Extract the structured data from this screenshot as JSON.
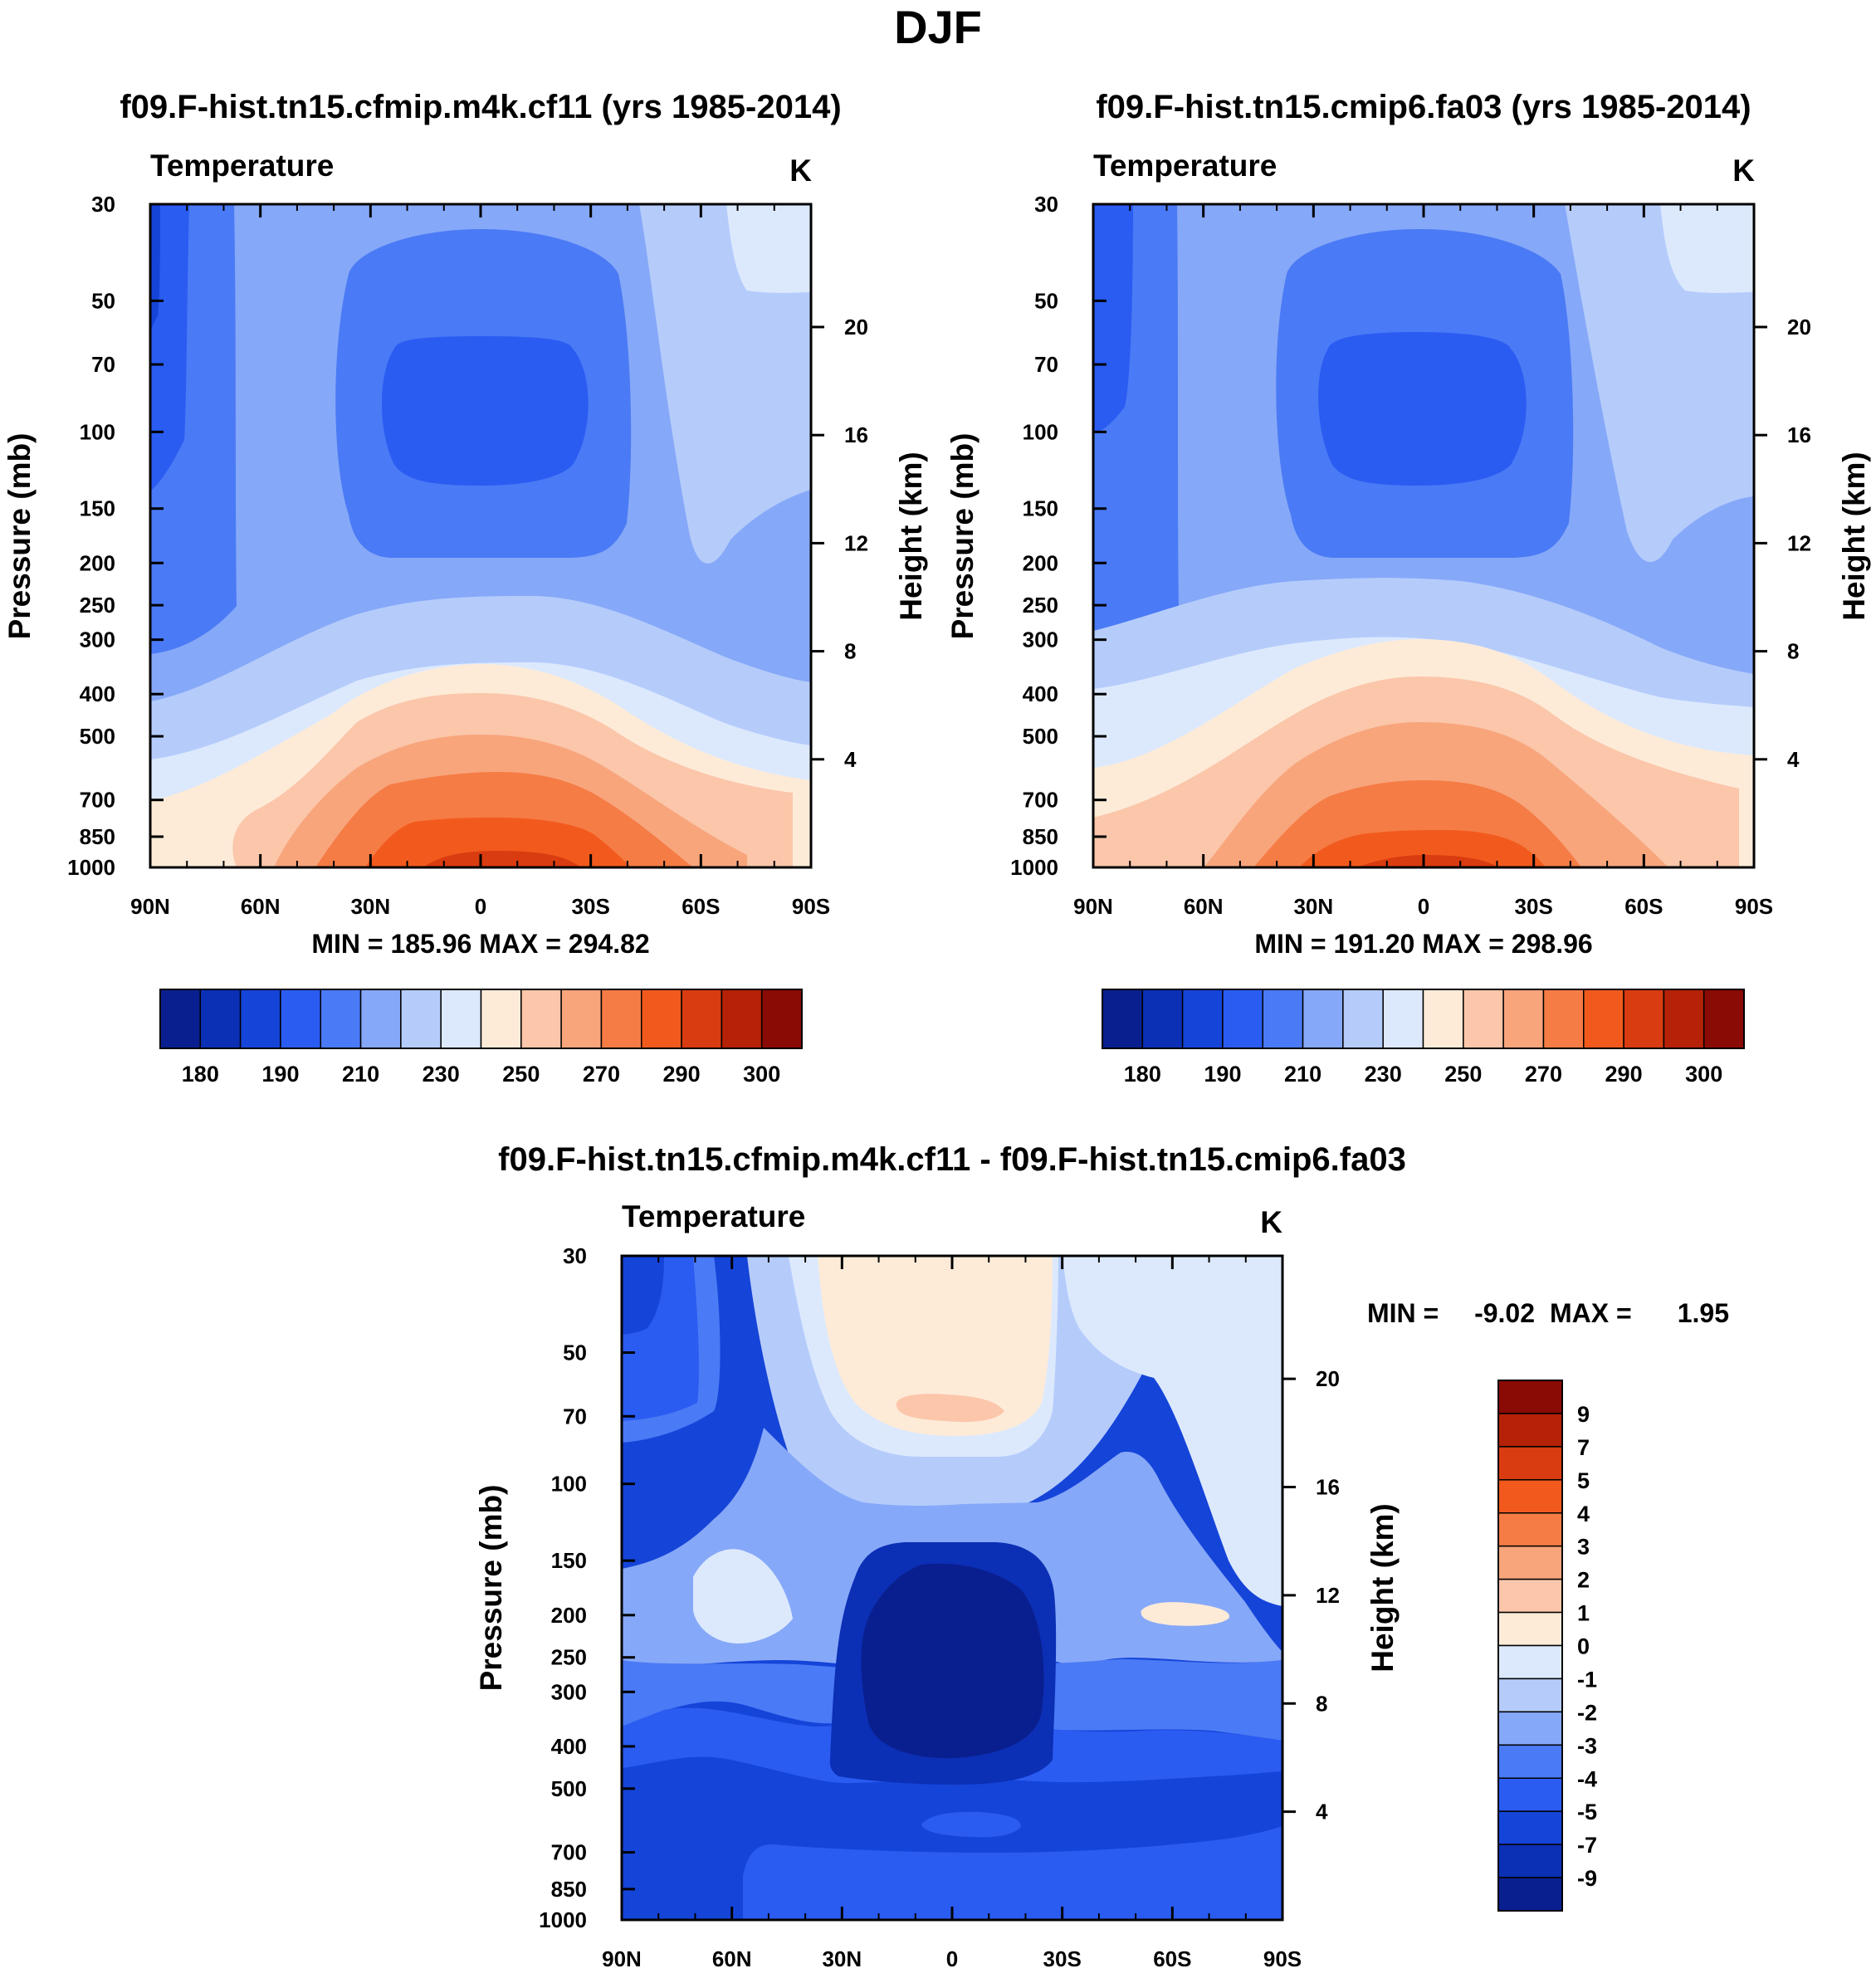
{
  "page": {
    "title": "DJF"
  },
  "colors": {
    "field": [
      "#0a1f8f",
      "#0b2fb5",
      "#1544d9",
      "#2a5cf2",
      "#4a7af5",
      "#86a8f8",
      "#b5ccfb",
      "#dce9fd",
      "#fdebd8",
      "#fbc6aa",
      "#f8a57c",
      "#f57c45",
      "#f25a1d",
      "#d93c10",
      "#b52208",
      "#8a0a05"
    ],
    "diff": [
      "#0a1f8f",
      "#0b2fb5",
      "#1544d9",
      "#2a5cf2",
      "#4a7af5",
      "#86a8f8",
      "#b5ccfb",
      "#dce9fd",
      "#fdebd8",
      "#fbc6aa",
      "#f8a57c",
      "#f57c45",
      "#f25a1d",
      "#d93c10",
      "#b52208",
      "#8a0a05"
    ]
  },
  "chart_data": [
    {
      "type": "heatmap",
      "title": "f09.F-hist.tn15.cfmip.m4k.cf11 (yrs 1985-2014)",
      "variable": "Temperature",
      "units": "K",
      "xlabel": "",
      "ylabel": "Pressure (mb)",
      "y2label": "Height (km)",
      "x_ticks": [
        "90N",
        "60N",
        "30N",
        "0",
        "30S",
        "60S",
        "90S"
      ],
      "y_ticks": [
        30,
        50,
        70,
        100,
        150,
        200,
        250,
        300,
        400,
        500,
        700,
        850,
        1000
      ],
      "y2_ticks": [
        4,
        8,
        12,
        16,
        20
      ],
      "stats": "MIN = 185.96  MAX = 294.82",
      "min": 185.96,
      "max": 294.82,
      "colorbar_labels": [
        "180",
        "190",
        "210",
        "230",
        "250",
        "270",
        "290",
        "300"
      ],
      "levels": [
        180,
        185,
        190,
        200,
        210,
        220,
        230,
        240,
        250,
        260,
        270,
        280,
        290,
        295,
        300
      ]
    },
    {
      "type": "heatmap",
      "title": "f09.F-hist.tn15.cmip6.fa03 (yrs 1985-2014)",
      "variable": "Temperature",
      "units": "K",
      "xlabel": "",
      "ylabel": "Pressure (mb)",
      "y2label": "Height (km)",
      "x_ticks": [
        "90N",
        "60N",
        "30N",
        "0",
        "30S",
        "60S",
        "90S"
      ],
      "y_ticks": [
        30,
        50,
        70,
        100,
        150,
        200,
        250,
        300,
        400,
        500,
        700,
        850,
        1000
      ],
      "y2_ticks": [
        4,
        8,
        12,
        16,
        20
      ],
      "stats": "MIN = 191.20  MAX = 298.96",
      "min": 191.2,
      "max": 298.96,
      "colorbar_labels": [
        "180",
        "190",
        "210",
        "230",
        "250",
        "270",
        "290",
        "300"
      ],
      "levels": [
        180,
        185,
        190,
        200,
        210,
        220,
        230,
        240,
        250,
        260,
        270,
        280,
        290,
        295,
        300
      ]
    },
    {
      "type": "heatmap",
      "title": "f09.F-hist.tn15.cfmip.m4k.cf11 - f09.F-hist.tn15.cmip6.fa03",
      "variable": "Temperature",
      "units": "K",
      "xlabel": "",
      "ylabel": "Pressure (mb)",
      "y2label": "Height (km)",
      "x_ticks": [
        "90N",
        "60N",
        "30N",
        "0",
        "30S",
        "60S",
        "90S"
      ],
      "y_ticks": [
        30,
        50,
        70,
        100,
        150,
        200,
        250,
        300,
        400,
        500,
        700,
        850,
        1000
      ],
      "y2_ticks": [
        4,
        8,
        12,
        16,
        20
      ],
      "stats_min_label": "MIN =",
      "stats_min": "-9.02",
      "stats_max_label": "MAX =",
      "stats_max": "1.95",
      "min": -9.02,
      "max": 1.95,
      "colorbar_labels": [
        "9",
        "7",
        "5",
        "4",
        "3",
        "2",
        "1",
        "0",
        "-1",
        "-2",
        "-3",
        "-4",
        "-5",
        "-7",
        "-9"
      ]
    }
  ]
}
